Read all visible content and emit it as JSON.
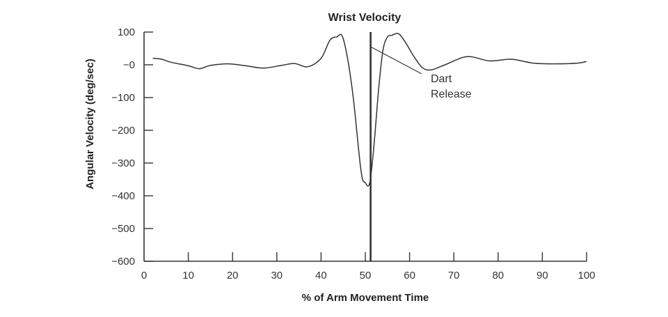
{
  "chart_data": {
    "type": "line",
    "title": "Wrist Velocity",
    "xlabel": "% of Arm Movement Time",
    "ylabel": "Angular Velocity (deg/sec)",
    "xlim": [
      0,
      100
    ],
    "ylim": [
      -600,
      100
    ],
    "x_ticks": [
      0,
      10,
      20,
      30,
      40,
      50,
      60,
      70,
      80,
      90,
      100
    ],
    "x_tick_labels": [
      "0",
      "10",
      "20",
      "30",
      "40",
      "50",
      "60",
      "70",
      "80",
      "90",
      "100"
    ],
    "y_ticks": [
      100,
      0,
      -100,
      -200,
      -300,
      -400,
      -500,
      -600
    ],
    "y_tick_labels": [
      "100",
      "−0",
      "−100",
      "−200",
      "−300",
      "−400",
      "−500",
      "−600"
    ],
    "grid": false,
    "series": [
      {
        "color": "#333333",
        "x": [
          2,
          4,
          6,
          10,
          12.5,
          15,
          19,
          23,
          27,
          31,
          34,
          37,
          40,
          42,
          43.5,
          45,
          47,
          49,
          50,
          51,
          52,
          53,
          54,
          55,
          56,
          57.5,
          59,
          61,
          63,
          65,
          68,
          73,
          78,
          83,
          88,
          93,
          98,
          100
        ],
        "y": [
          20,
          17,
          8,
          -3,
          -12,
          -2,
          3,
          -3,
          -10,
          -2,
          4,
          -6,
          20,
          75,
          85,
          80,
          -70,
          -320,
          -360,
          -360,
          -240,
          -75,
          45,
          85,
          90,
          95,
          70,
          25,
          -10,
          -15,
          0,
          25,
          12,
          17,
          5,
          3,
          5,
          10
        ]
      }
    ],
    "vertical_line": {
      "x": 51.2,
      "color": "#333333"
    },
    "annotations": [
      {
        "lines": [
          "Dart",
          "Release"
        ],
        "points_to": {
          "x": 51.2,
          "y": 55
        }
      }
    ]
  }
}
